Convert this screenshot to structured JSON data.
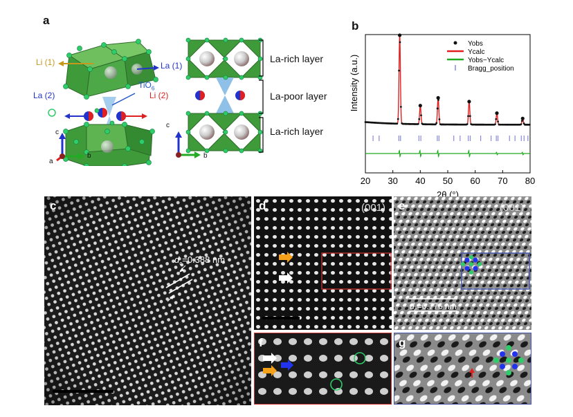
{
  "panels": {
    "a": {
      "label": "a",
      "left_structure": {
        "labels": {
          "li1": "Li (1)",
          "la1": "La (1)",
          "tio6": "TiO",
          "tio6_sub": "6",
          "la2": "La (2)",
          "li2": "Li (2)",
          "o": "O"
        },
        "axes": {
          "c": "c",
          "b": "b",
          "a": "a"
        }
      },
      "right_structure": {
        "layers": [
          "La-rich layer",
          "La-poor layer",
          "La-rich layer"
        ],
        "axes": {
          "c": "c",
          "b": "b"
        }
      }
    },
    "b": {
      "label": "b",
      "legend": [
        "Yobs",
        "Ycalc",
        "Yobs−Ycalc",
        "Bragg_position"
      ]
    },
    "c": {
      "label": "c",
      "annotation_d": "d",
      "annotation_sub": "c",
      "annotation_value": "=0.388 nm"
    },
    "d": {
      "label": "d",
      "orientation": "(001)"
    },
    "e": {
      "label": "e",
      "orientation": "(001)",
      "annotation_d": "d",
      "annotation_sub": "c",
      "annotation_value": "=0.776 nm"
    },
    "f": {
      "label": "f"
    },
    "g": {
      "label": "g"
    }
  },
  "colors": {
    "octahedron": "#3f9a3a",
    "octahedron_dark": "#2c7a2a",
    "oxygen": "#2fcc6a",
    "li_color": "#c8981a",
    "la_color": "#2233cc",
    "red_li": "#e02020",
    "tio6_color": "#2255cc",
    "ycalc": "#e02020",
    "diff": "#22aa22",
    "bragg": "#8888dd",
    "frame_d": "#cc3333",
    "frame_e": "#4455aa"
  },
  "chart_data": {
    "type": "line",
    "title": "",
    "xlabel": "2θ (°)",
    "ylabel": "Intensity (a.u.)",
    "xlim": [
      20,
      80
    ],
    "xticks": [
      20,
      30,
      40,
      50,
      60,
      70,
      80
    ],
    "background": 0.06,
    "peaks": [
      {
        "x": 32.5,
        "y": 1.0
      },
      {
        "x": 40.0,
        "y": 0.21
      },
      {
        "x": 46.5,
        "y": 0.3
      },
      {
        "x": 57.8,
        "y": 0.26
      },
      {
        "x": 67.9,
        "y": 0.13
      },
      {
        "x": 77.3,
        "y": 0.07
      }
    ],
    "bragg_positions": [
      22.8,
      25.0,
      32.2,
      32.8,
      39.5,
      40.2,
      46.2,
      46.8,
      52.2,
      54.5,
      57.5,
      58.2,
      62.0,
      65.8,
      67.7,
      68.3,
      72.5,
      74.5,
      76.8,
      77.8,
      79.2
    ],
    "series": [
      {
        "name": "Yobs"
      },
      {
        "name": "Ycalc"
      },
      {
        "name": "Yobs−Ycalc"
      },
      {
        "name": "Bragg_position"
      }
    ],
    "grid": false,
    "legend_position": "top-right"
  }
}
